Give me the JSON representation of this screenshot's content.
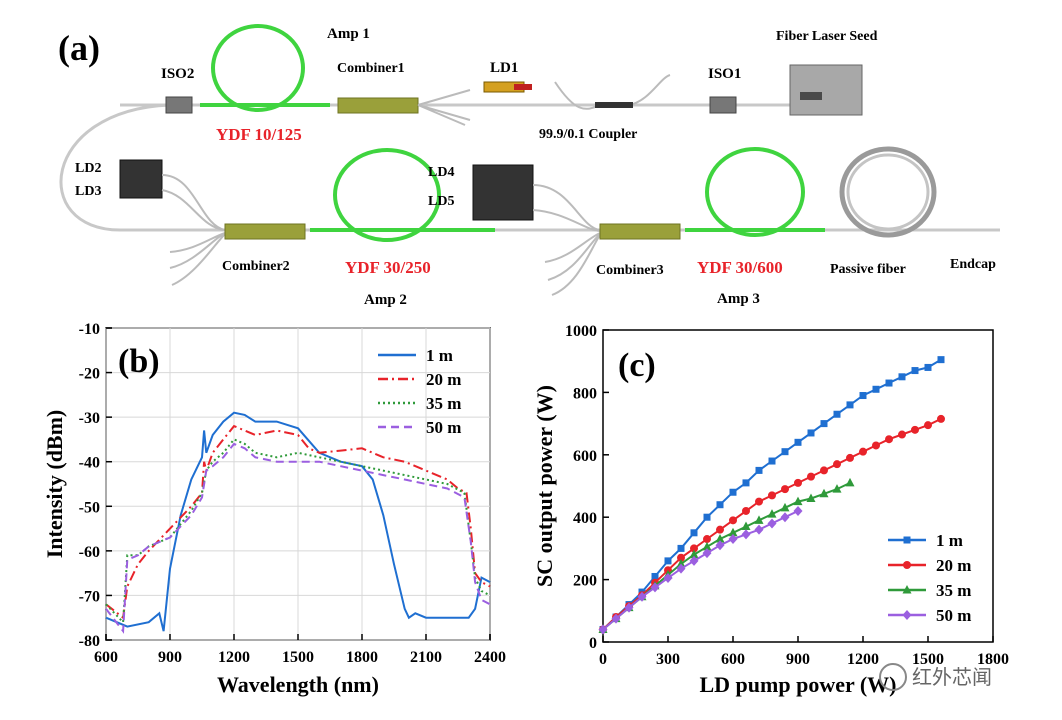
{
  "panel_a": {
    "tag": "(a)",
    "labels": {
      "amp1": "Amp 1",
      "amp2": "Amp 2",
      "amp3": "Amp 3",
      "fiber_laser_seed": "Fiber Laser Seed",
      "iso1": "ISO1",
      "iso2": "ISO2",
      "combiner1": "Combiner1",
      "combiner2": "Combiner2",
      "combiner3": "Combiner3",
      "ld1": "LD1",
      "ld2": "LD2",
      "ld3": "LD3",
      "ld4": "LD4",
      "ld5": "LD5",
      "coupler": "99.9/0.1 Coupler",
      "ydf1": "YDF 10/125",
      "ydf2": "YDF 30/250",
      "ydf3": "YDF 30/600",
      "passive_fiber": "Passive fiber",
      "endcap": "Endcap"
    },
    "colors": {
      "gain_fiber": "#3fd43f",
      "ydf_text": "#e8232a",
      "combiner": "#9aa03a"
    }
  },
  "chart_data": [
    {
      "id": "b",
      "tag": "(b)",
      "type": "line",
      "xlabel": "Wavelength (nm)",
      "ylabel": "Intensity (dBm)",
      "xlim": [
        600,
        2400
      ],
      "ylim": [
        -80,
        -10
      ],
      "xticks": [
        600,
        900,
        1200,
        1500,
        1800,
        2100,
        2400
      ],
      "yticks": [
        -80,
        -70,
        -60,
        -50,
        -40,
        -30,
        -20,
        -10
      ],
      "xtick_labels": [
        "600",
        "900",
        "1200",
        "1500",
        "1800",
        "2100",
        "2400"
      ],
      "ytick_labels": [
        "-80",
        "-70",
        "-60",
        "-50",
        "-40",
        "-30",
        "-20",
        "-10"
      ],
      "legend_position": "top-right",
      "series": [
        {
          "name": "1 m",
          "color": "#1f6fd1",
          "dash": "solid",
          "x": [
            600,
            700,
            800,
            850,
            870,
            900,
            950,
            1000,
            1050,
            1060,
            1070,
            1100,
            1150,
            1200,
            1250,
            1300,
            1400,
            1500,
            1600,
            1700,
            1800,
            1850,
            1900,
            1950,
            2000,
            2020,
            2050,
            2100,
            2200,
            2300,
            2330,
            2360,
            2400
          ],
          "y": [
            -75,
            -77,
            -76,
            -74,
            -78,
            -64,
            -52,
            -44,
            -39,
            -33,
            -38,
            -34,
            -31,
            -29,
            -29.5,
            -31,
            -31,
            -32.5,
            -38,
            -40,
            -41,
            -44,
            -52,
            -63,
            -73,
            -75,
            -74,
            -75,
            -75,
            -75,
            -73,
            -66,
            -67
          ]
        },
        {
          "name": "20 m",
          "color": "#e8232a",
          "dash": "dashdot",
          "x": [
            600,
            680,
            700,
            750,
            800,
            900,
            1000,
            1050,
            1060,
            1070,
            1100,
            1150,
            1200,
            1250,
            1300,
            1400,
            1500,
            1550,
            1600,
            1700,
            1800,
            1900,
            2000,
            2100,
            2200,
            2250,
            2290,
            2310,
            2330,
            2360,
            2400
          ],
          "y": [
            -72,
            -75,
            -68,
            -63,
            -60,
            -55,
            -50,
            -47,
            -40,
            -42,
            -38,
            -35,
            -32,
            -33,
            -34,
            -33,
            -34,
            -37,
            -38,
            -37.5,
            -37,
            -39,
            -40,
            -42,
            -44,
            -46,
            -47,
            -55,
            -65,
            -67,
            -68
          ]
        },
        {
          "name": "35 m",
          "color": "#2f9a3a",
          "dash": "dotted",
          "x": [
            600,
            680,
            700,
            750,
            800,
            900,
            1000,
            1050,
            1070,
            1100,
            1150,
            1200,
            1250,
            1300,
            1400,
            1500,
            1600,
            1700,
            1800,
            1900,
            2000,
            2100,
            2200,
            2280,
            2310,
            2330,
            2360,
            2400
          ],
          "y": [
            -72,
            -76,
            -61,
            -61,
            -59,
            -57,
            -51,
            -47,
            -42,
            -40,
            -38,
            -35,
            -36,
            -38,
            -39,
            -38,
            -39,
            -40,
            -41,
            -42,
            -43,
            -44,
            -45,
            -47,
            -58,
            -66,
            -69,
            -70
          ]
        },
        {
          "name": "50 m",
          "color": "#9b5fe0",
          "dash": "dashed",
          "x": [
            600,
            680,
            700,
            750,
            800,
            900,
            1000,
            1050,
            1070,
            1100,
            1150,
            1200,
            1250,
            1300,
            1400,
            1500,
            1600,
            1700,
            1800,
            1900,
            2000,
            2100,
            2200,
            2280,
            2310,
            2330,
            2360,
            2400
          ],
          "y": [
            -73,
            -78,
            -62,
            -61,
            -59,
            -57,
            -52,
            -48,
            -42,
            -41,
            -39,
            -36,
            -37,
            -39,
            -40,
            -40,
            -40,
            -41,
            -42,
            -43,
            -44,
            -45,
            -46,
            -48,
            -58,
            -67,
            -71,
            -72
          ]
        }
      ]
    },
    {
      "id": "c",
      "tag": "(c)",
      "type": "line",
      "xlabel": "LD pump power (W)",
      "ylabel": "SC output power (W)",
      "xlim": [
        0,
        1800
      ],
      "ylim": [
        0,
        1000
      ],
      "xticks": [
        0,
        300,
        600,
        900,
        1200,
        1500,
        1800
      ],
      "yticks": [
        0,
        200,
        400,
        600,
        800,
        1000
      ],
      "xtick_labels": [
        "0",
        "300",
        "600",
        "900",
        "1200",
        "1500",
        "1800"
      ],
      "ytick_labels": [
        "0",
        "200",
        "400",
        "600",
        "800",
        "1000"
      ],
      "legend_position": "bottom-right",
      "series": [
        {
          "name": "1 m",
          "color": "#1f6fd1",
          "marker": "square",
          "x": [
            0,
            60,
            120,
            180,
            240,
            300,
            360,
            420,
            480,
            540,
            600,
            660,
            720,
            780,
            840,
            900,
            960,
            1020,
            1080,
            1140,
            1200,
            1260,
            1320,
            1380,
            1440,
            1500,
            1560
          ],
          "y": [
            40,
            80,
            120,
            160,
            210,
            260,
            300,
            350,
            400,
            440,
            480,
            510,
            550,
            580,
            610,
            640,
            670,
            700,
            730,
            760,
            790,
            810,
            830,
            850,
            870,
            880,
            905
          ]
        },
        {
          "name": "20 m",
          "color": "#e8232a",
          "marker": "circle",
          "x": [
            0,
            60,
            120,
            180,
            240,
            300,
            360,
            420,
            480,
            540,
            600,
            660,
            720,
            780,
            840,
            900,
            960,
            1020,
            1080,
            1140,
            1200,
            1260,
            1320,
            1380,
            1440,
            1500,
            1560
          ],
          "y": [
            40,
            80,
            115,
            150,
            190,
            230,
            270,
            300,
            330,
            360,
            390,
            420,
            450,
            470,
            490,
            510,
            530,
            550,
            570,
            590,
            610,
            630,
            650,
            665,
            680,
            695,
            715
          ]
        },
        {
          "name": "35 m",
          "color": "#2f9a3a",
          "marker": "triangle",
          "x": [
            0,
            60,
            120,
            180,
            240,
            300,
            360,
            420,
            480,
            540,
            600,
            660,
            720,
            780,
            840,
            900,
            960,
            1020,
            1080,
            1140
          ],
          "y": [
            40,
            75,
            110,
            145,
            180,
            215,
            250,
            280,
            305,
            330,
            350,
            370,
            390,
            410,
            430,
            450,
            460,
            475,
            490,
            510
          ]
        },
        {
          "name": "50 m",
          "color": "#9b5fe0",
          "marker": "diamond",
          "x": [
            0,
            60,
            120,
            180,
            240,
            300,
            360,
            420,
            480,
            540,
            600,
            660,
            720,
            780,
            840,
            900
          ],
          "y": [
            40,
            75,
            110,
            145,
            175,
            205,
            235,
            260,
            285,
            310,
            330,
            345,
            360,
            380,
            400,
            420
          ]
        }
      ]
    }
  ],
  "watermark": "红外芯闻"
}
